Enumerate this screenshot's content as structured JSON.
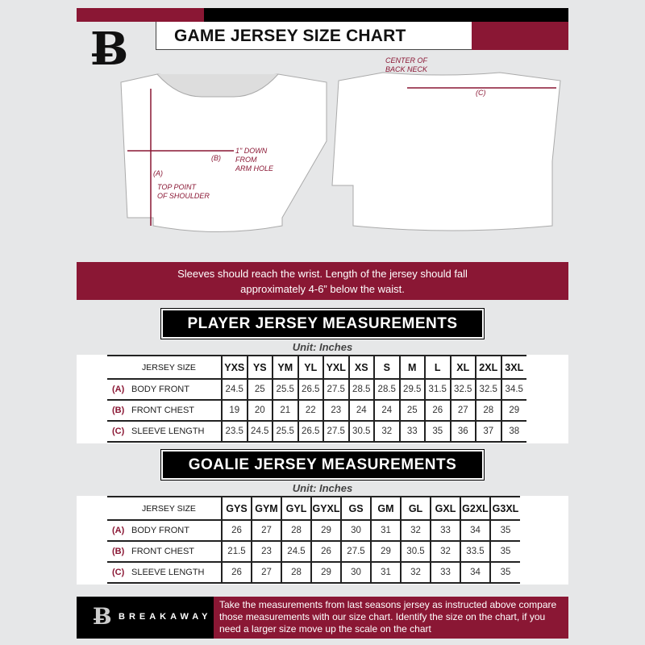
{
  "header": {
    "title": "GAME JERSEY SIZE CHART",
    "logo": "B"
  },
  "diagram": {
    "label_a": "(A)",
    "label_a_desc": "TOP POINT\nOF SHOULDER",
    "label_b": "(B)",
    "label_b_desc": "1\" DOWN\nFROM\nARM HOLE",
    "label_c": "(C)",
    "label_c_desc": "CENTER OF\nBACK NECK"
  },
  "banner": {
    "line1": "Sleeves should reach the wrist. Length of the jersey should fall",
    "line2": "approximately 4-6” below the waist."
  },
  "player": {
    "title": "PLAYER JERSEY MEASUREMENTS",
    "unit": "Unit: Inches",
    "header": "JERSEY SIZE",
    "sizes": [
      "YXS",
      "YS",
      "YM",
      "YL",
      "YXL",
      "XS",
      "S",
      "M",
      "L",
      "XL",
      "2XL",
      "3XL"
    ],
    "rows": [
      {
        "code": "(A)",
        "label": "BODY FRONT",
        "values": [
          "24.5",
          "25",
          "25.5",
          "26.5",
          "27.5",
          "28.5",
          "28.5",
          "29.5",
          "31.5",
          "32.5",
          "32.5",
          "34.5"
        ]
      },
      {
        "code": "(B)",
        "label": "FRONT CHEST",
        "values": [
          "19",
          "20",
          "21",
          "22",
          "23",
          "24",
          "24",
          "25",
          "26",
          "27",
          "28",
          "29"
        ]
      },
      {
        "code": "(C)",
        "label": "SLEEVE LENGTH",
        "values": [
          "23.5",
          "24.5",
          "25.5",
          "26.5",
          "27.5",
          "30.5",
          "32",
          "33",
          "35",
          "36",
          "37",
          "38"
        ]
      }
    ]
  },
  "goalie": {
    "title": "GOALIE JERSEY MEASUREMENTS",
    "unit": "Unit: Inches",
    "header": "JERSEY SIZE",
    "sizes": [
      "GYS",
      "GYM",
      "GYL",
      "GYXL",
      "GS",
      "GM",
      "GL",
      "GXL",
      "G2XL",
      "G3XL"
    ],
    "rows": [
      {
        "code": "(A)",
        "label": "BODY FRONT",
        "values": [
          "26",
          "27",
          "28",
          "29",
          "30",
          "31",
          "32",
          "33",
          "34",
          "35"
        ]
      },
      {
        "code": "(B)",
        "label": "FRONT CHEST",
        "values": [
          "21.5",
          "23",
          "24.5",
          "26",
          "27.5",
          "29",
          "30.5",
          "32",
          "33.5",
          "35"
        ]
      },
      {
        "code": "(C)",
        "label": "SLEEVE LENGTH",
        "values": [
          "26",
          "27",
          "28",
          "29",
          "30",
          "31",
          "32",
          "33",
          "34",
          "35"
        ]
      }
    ]
  },
  "footer": {
    "brand": "BREAKAWAY",
    "logo": "B",
    "text": "Take the measurements from last seasons jersey as instructed above compare those measurements  with our size chart. Identify the size on the chart, if you need a larger size move up the scale on the chart"
  },
  "colors": {
    "accent": "#8a1734",
    "dark": "#000000",
    "background": "#e6e7e8"
  }
}
